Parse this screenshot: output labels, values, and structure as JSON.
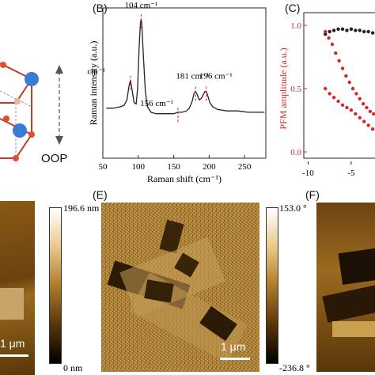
{
  "panel_labels": {
    "b": "(B)",
    "c": "(C)",
    "e": "(E)",
    "f": "(F)"
  },
  "panel_a": {
    "direction_label": "OOP"
  },
  "chart_data": [
    {
      "type": "line",
      "panel": "B",
      "xlabel": "Raman shift (cm⁻¹)",
      "ylabel": "Raman intensity (a.u.)",
      "xlim": [
        50,
        280
      ],
      "xticks": [
        50,
        100,
        150,
        200,
        250
      ],
      "grid": false,
      "series": [
        {
          "color": "#222222",
          "x": [
            55,
            65,
            75,
            80,
            84,
            87,
            89,
            91,
            94,
            97,
            99,
            101,
            103,
            104,
            105,
            107,
            110,
            113,
            118,
            125,
            135,
            145,
            150,
            156,
            162,
            168,
            172,
            176,
            179,
            181,
            183,
            186,
            189,
            192,
            194,
            196,
            198,
            201,
            205,
            212,
            225,
            240,
            255,
            270,
            278
          ],
          "y": [
            0.36,
            0.36,
            0.37,
            0.38,
            0.42,
            0.52,
            0.56,
            0.5,
            0.4,
            0.39,
            0.5,
            0.78,
            0.97,
            1.0,
            0.96,
            0.75,
            0.48,
            0.37,
            0.33,
            0.32,
            0.32,
            0.32,
            0.32,
            0.33,
            0.33,
            0.34,
            0.36,
            0.41,
            0.47,
            0.48,
            0.46,
            0.42,
            0.43,
            0.46,
            0.48,
            0.48,
            0.45,
            0.4,
            0.37,
            0.35,
            0.34,
            0.34,
            0.33,
            0.33,
            0.33
          ]
        }
      ],
      "annotations": [
        {
          "text": "89 cm⁻¹",
          "x": 89,
          "y": 0.56
        },
        {
          "text": "104 cm⁻¹",
          "x": 104,
          "y": 1.0
        },
        {
          "text": "156 cm⁻¹",
          "x": 156,
          "y": 0.33
        },
        {
          "text": "181 cm⁻¹",
          "x": 181,
          "y": 0.48
        },
        {
          "text": "196 cm⁻¹",
          "x": 196,
          "y": 0.48
        }
      ]
    },
    {
      "type": "scatter",
      "panel": "C",
      "ylabel": "PFM amplitude (a.u.)",
      "ylim": [
        0,
        1.0
      ],
      "xticks": [
        -10,
        -5
      ],
      "yticks": [
        0.0,
        0.5,
        1.0
      ],
      "grid": false,
      "series": [
        {
          "color": "#222222",
          "x": [
            -8.0,
            -7.5,
            -7.0,
            -6.5,
            -6.0,
            -5.5,
            -5.0,
            -4.5,
            -4.0,
            -3.5,
            -3.0,
            -2.5,
            -2.0
          ],
          "y": [
            0.93,
            0.95,
            0.96,
            0.97,
            0.97,
            0.96,
            0.97,
            0.96,
            0.96,
            0.95,
            0.95,
            0.94,
            0.94
          ]
        },
        {
          "color": "#d62728",
          "x": [
            -8.0,
            -7.6,
            -7.2,
            -6.8,
            -6.4,
            -6.0,
            -5.6,
            -5.2,
            -4.8,
            -4.4,
            -4.0,
            -3.6,
            -3.2,
            -2.8,
            -2.4,
            -2.0
          ],
          "y": [
            0.95,
            0.9,
            0.85,
            0.78,
            0.72,
            0.66,
            0.6,
            0.55,
            0.5,
            0.46,
            0.42,
            0.38,
            0.35,
            0.32,
            0.3,
            0.28
          ]
        },
        {
          "color": "#d62728",
          "x": [
            -8.0,
            -7.5,
            -7.0,
            -6.5,
            -6.0,
            -5.5,
            -5.0,
            -4.5,
            -4.0,
            -3.5,
            -3.0,
            -2.5,
            -2.0
          ],
          "y": [
            0.5,
            0.46,
            0.43,
            0.4,
            0.37,
            0.35,
            0.33,
            0.3,
            0.27,
            0.24,
            0.21,
            0.18,
            0.15
          ]
        }
      ]
    }
  ],
  "colorbar_d": {
    "max": "196.6 nm",
    "min": "0 nm"
  },
  "colorbar_e": {
    "max": "153.0 °",
    "min": "-236.8 °"
  },
  "scalebars": {
    "d": "1 μm",
    "e": "1 μm"
  }
}
